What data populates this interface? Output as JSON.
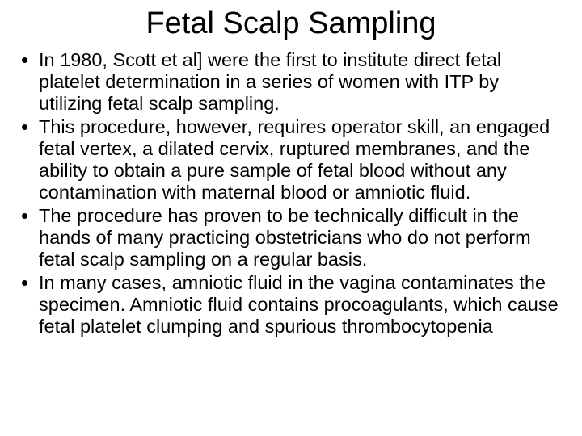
{
  "title": "Fetal Scalp Sampling",
  "title_fontsize": 38,
  "body_fontsize": 23.5,
  "background_color": "#ffffff",
  "text_color": "#000000",
  "bullets": [
    "In 1980, Scott et al] were the first to institute direct fetal platelet determination in a series of women with ITP by utilizing fetal scalp sampling.",
    " This procedure, however, requires operator skill, an engaged fetal vertex, a dilated cervix, ruptured membranes, and the ability to obtain a pure sample of fetal blood without any contamination with maternal blood or amniotic fluid.",
    "The procedure has proven to be technically difficult in the hands of many practicing obstetricians who do not perform fetal scalp sampling on a regular basis.",
    " In many cases, amniotic fluid in the vagina contaminates the specimen. Amniotic fluid contains procoagulants, which cause fetal platelet clumping and spurious thrombocytopenia"
  ]
}
